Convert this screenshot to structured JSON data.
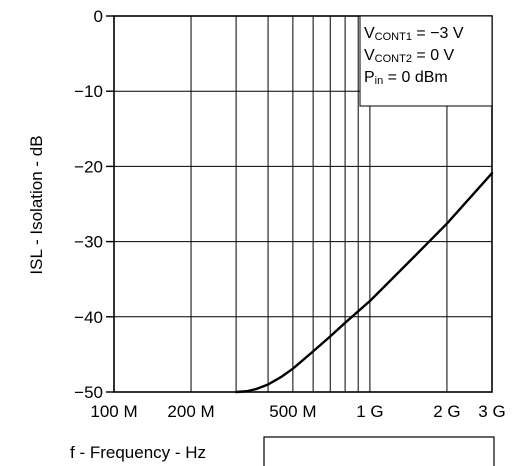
{
  "chart_data": {
    "type": "line",
    "title": "",
    "xlabel": "f - Frequency - Hz",
    "ylabel": "ISL - Isolation - dB",
    "xscale": "log",
    "xlim": [
      100000000,
      3000000000
    ],
    "ylim": [
      -50,
      0
    ],
    "grid": true,
    "x_ticks": [
      {
        "value": 100000000,
        "label": "100 M"
      },
      {
        "value": 200000000,
        "label": "200 M"
      },
      {
        "value": 500000000,
        "label": "500 M"
      },
      {
        "value": 1000000000,
        "label": "1 G"
      },
      {
        "value": 2000000000,
        "label": "2 G"
      },
      {
        "value": 3000000000,
        "label": "3 G"
      }
    ],
    "x_gridlines": [
      100000000,
      200000000,
      300000000,
      400000000,
      500000000,
      600000000,
      700000000,
      800000000,
      900000000,
      1000000000,
      2000000000,
      3000000000
    ],
    "y_ticks": [
      {
        "value": 0,
        "label": "0"
      },
      {
        "value": -10,
        "label": "−10"
      },
      {
        "value": -20,
        "label": "−20"
      },
      {
        "value": -30,
        "label": "−30"
      },
      {
        "value": -40,
        "label": "−40"
      },
      {
        "value": -50,
        "label": "−50"
      }
    ],
    "legend_placement": "top-right",
    "annotations": [
      {
        "main": "V",
        "sub": "CONT1",
        "rest": " = −3 V"
      },
      {
        "main": "V",
        "sub": "CONT2",
        "rest": " = 0 V"
      },
      {
        "main": "P",
        "sub": "in",
        "rest": " = 0 dBm"
      }
    ],
    "series": [
      {
        "color": "#000000",
        "x": [
          300000000,
          330000000,
          360000000,
          400000000,
          450000000,
          500000000,
          600000000,
          700000000,
          800000000,
          1000000000,
          1500000000,
          2000000000,
          3000000000
        ],
        "y": [
          -50,
          -49.9,
          -49.6,
          -49.0,
          -48.0,
          -46.9,
          -44.6,
          -42.6,
          -40.8,
          -37.9,
          -31.9,
          -27.6,
          -20.9
        ]
      }
    ]
  }
}
